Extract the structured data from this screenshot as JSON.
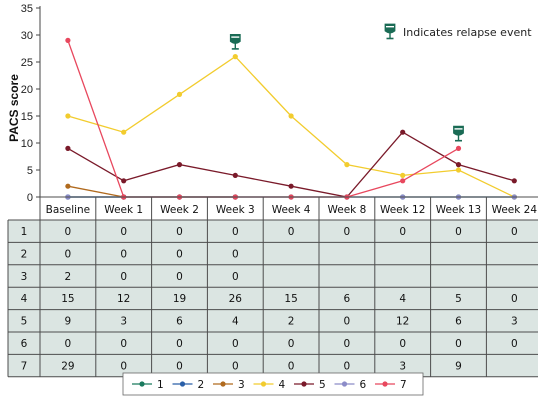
{
  "chart_data": {
    "type": "line",
    "ylabel": "PACS score",
    "ylim": [
      0,
      35
    ],
    "yticks": [
      0,
      5,
      10,
      15,
      20,
      25,
      30,
      35
    ],
    "categories": [
      "Baseline",
      "Week 1",
      "Week 2",
      "Week 3",
      "Week 4",
      "Week 8",
      "Week 12",
      "Week 13",
      "Week 24"
    ],
    "annotation": "Indicates relapse event",
    "relapse_events": [
      {
        "category": "Week 3",
        "value": 29
      },
      {
        "category": "Week 13",
        "value": 12
      }
    ],
    "series": [
      {
        "name": "1",
        "color": "#1a7a5e",
        "values": [
          0,
          0,
          0,
          0,
          0,
          0,
          0,
          0,
          0
        ]
      },
      {
        "name": "2",
        "color": "#2a5fa8",
        "values": [
          0,
          0,
          0,
          0,
          null,
          null,
          null,
          null,
          null
        ]
      },
      {
        "name": "3",
        "color": "#b06a1e",
        "values": [
          2,
          0,
          0,
          0,
          null,
          null,
          null,
          null,
          null
        ]
      },
      {
        "name": "4",
        "color": "#f2cc2e",
        "values": [
          15,
          12,
          19,
          26,
          15,
          6,
          4,
          5,
          0
        ]
      },
      {
        "name": "5",
        "color": "#7a1a2a",
        "values": [
          9,
          3,
          6,
          4,
          2,
          0,
          12,
          6,
          3
        ]
      },
      {
        "name": "6",
        "color": "#8c8cc8",
        "values": [
          0,
          0,
          0,
          0,
          0,
          0,
          0,
          0,
          0
        ]
      },
      {
        "name": "7",
        "color": "#e8485e",
        "values": [
          29,
          0,
          0,
          0,
          0,
          0,
          3,
          9,
          null
        ]
      }
    ],
    "table": {
      "row_labels": [
        "1",
        "2",
        "3",
        "4",
        "5",
        "6",
        "7"
      ],
      "rows": [
        [
          "0",
          "0",
          "0",
          "0",
          "0",
          "0",
          "0",
          "0",
          "0"
        ],
        [
          "0",
          "0",
          "0",
          "0",
          "",
          "",
          "",
          "",
          ""
        ],
        [
          "2",
          "0",
          "0",
          "0",
          "",
          "",
          "",
          "",
          ""
        ],
        [
          "15",
          "12",
          "19",
          "26",
          "15",
          "6",
          "4",
          "5",
          "0"
        ],
        [
          "9",
          "3",
          "6",
          "4",
          "2",
          "0",
          "12",
          "6",
          "3"
        ],
        [
          "0",
          "0",
          "0",
          "0",
          "0",
          "0",
          "0",
          "0",
          "0"
        ],
        [
          "29",
          "0",
          "0",
          "0",
          "0",
          "0",
          "3",
          "9",
          ""
        ]
      ]
    },
    "legend": [
      "1",
      "2",
      "3",
      "4",
      "5",
      "6",
      "7"
    ],
    "colors": {
      "table_body": "#dbe5e2",
      "table_border": "#4d4d4d",
      "relapse_icon": "#1a6b55"
    }
  }
}
